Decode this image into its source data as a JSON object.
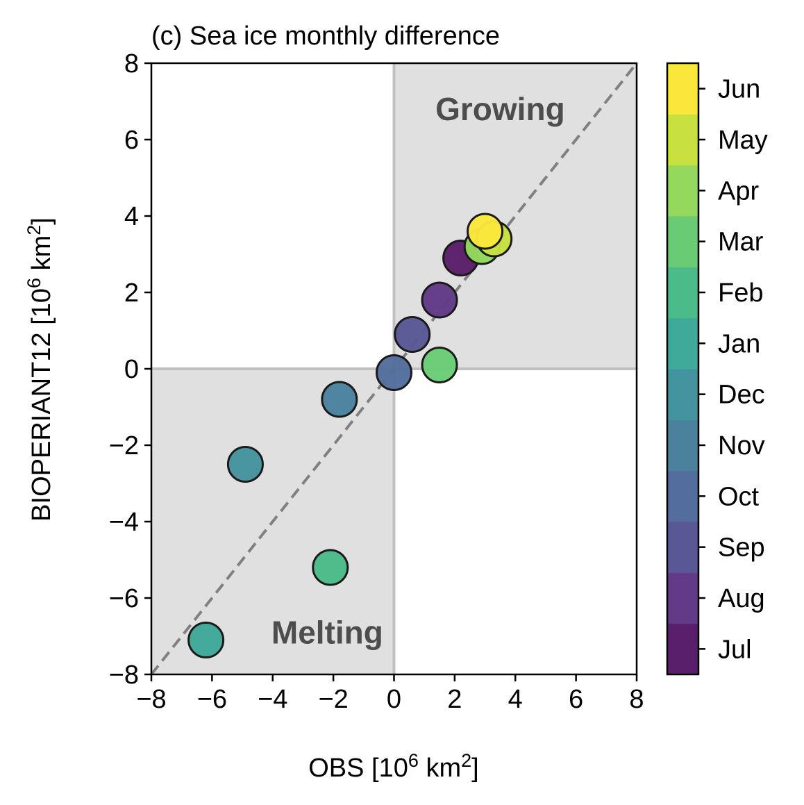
{
  "chart_data": {
    "type": "scatter",
    "title": "(c) Sea ice monthly difference",
    "xlabel": {
      "base": "OBS [10",
      "exp": "6",
      "mid": " km",
      "exp2": "2",
      "tail": "]"
    },
    "ylabel": {
      "base": "BIOPERIANT12 [10",
      "exp": "6",
      "mid": " km",
      "exp2": "2",
      "tail": "]"
    },
    "xlim": [
      -8,
      8
    ],
    "ylim": [
      -8,
      8
    ],
    "xticks": [
      -8,
      -6,
      -4,
      -2,
      0,
      2,
      4,
      6,
      8
    ],
    "yticks": [
      -8,
      -6,
      -4,
      -2,
      0,
      2,
      4,
      6,
      8
    ],
    "xtick_labels": [
      "−8",
      "−6",
      "−4",
      "−2",
      "0",
      "2",
      "4",
      "6",
      "8"
    ],
    "ytick_labels": [
      "−8",
      "−6",
      "−4",
      "−2",
      "0",
      "2",
      "4",
      "6",
      "8"
    ],
    "grid": false,
    "reference_line": {
      "type": "y=x",
      "style": "dashed",
      "color": "#808080"
    },
    "shaded_quadrants": [
      {
        "x": [
          0,
          8
        ],
        "y": [
          0,
          8
        ],
        "color": "#e0e0e0"
      },
      {
        "x": [
          -8,
          0
        ],
        "y": [
          -8,
          0
        ],
        "color": "#e0e0e0"
      }
    ],
    "annotations": [
      {
        "text": "Growing",
        "x": 3.5,
        "y": 6.8
      },
      {
        "text": "Melting",
        "x": -2.2,
        "y": -6.9
      }
    ],
    "points": [
      {
        "month": "Jul",
        "x": 2.2,
        "y": 2.9
      },
      {
        "month": "Aug",
        "x": 1.5,
        "y": 1.8
      },
      {
        "month": "Sep",
        "x": 0.6,
        "y": 0.9
      },
      {
        "month": "Oct",
        "x": 0.0,
        "y": -0.1
      },
      {
        "month": "Nov",
        "x": -1.8,
        "y": -0.8
      },
      {
        "month": "Dec",
        "x": -4.9,
        "y": -2.5
      },
      {
        "month": "Jan",
        "x": -6.2,
        "y": -7.1
      },
      {
        "month": "Feb",
        "x": -2.1,
        "y": -5.2
      },
      {
        "month": "Mar",
        "x": 1.5,
        "y": 0.1
      },
      {
        "month": "Apr",
        "x": 2.9,
        "y": 3.2
      },
      {
        "month": "May",
        "x": 3.3,
        "y": 3.4
      },
      {
        "month": "Jun",
        "x": 3.0,
        "y": 3.6
      }
    ],
    "colorbar": {
      "labels": [
        "Jul",
        "Aug",
        "Sep",
        "Oct",
        "Nov",
        "Dec",
        "Jan",
        "Feb",
        "Mar",
        "Apr",
        "May",
        "Jun"
      ],
      "colors": [
        "#44015488",
        "#48287d",
        "#3f4a8a",
        "#31688e",
        "#26828e",
        "#1f9e89",
        "#35b779",
        "#6ece58",
        "#b5de2b",
        "#fde725"
      ]
    },
    "month_colors": {
      "Jul": "#5a1f6a",
      "Aug": "#623a88",
      "Sep": "#5a5797",
      "Oct": "#536e9c",
      "Nov": "#4a829e",
      "Dec": "#44949f",
      "Jan": "#3fa99a",
      "Feb": "#4bbb89",
      "Mar": "#69cc75",
      "Apr": "#94d95d",
      "May": "#c8e040",
      "Jun": "#fbe73c"
    }
  }
}
